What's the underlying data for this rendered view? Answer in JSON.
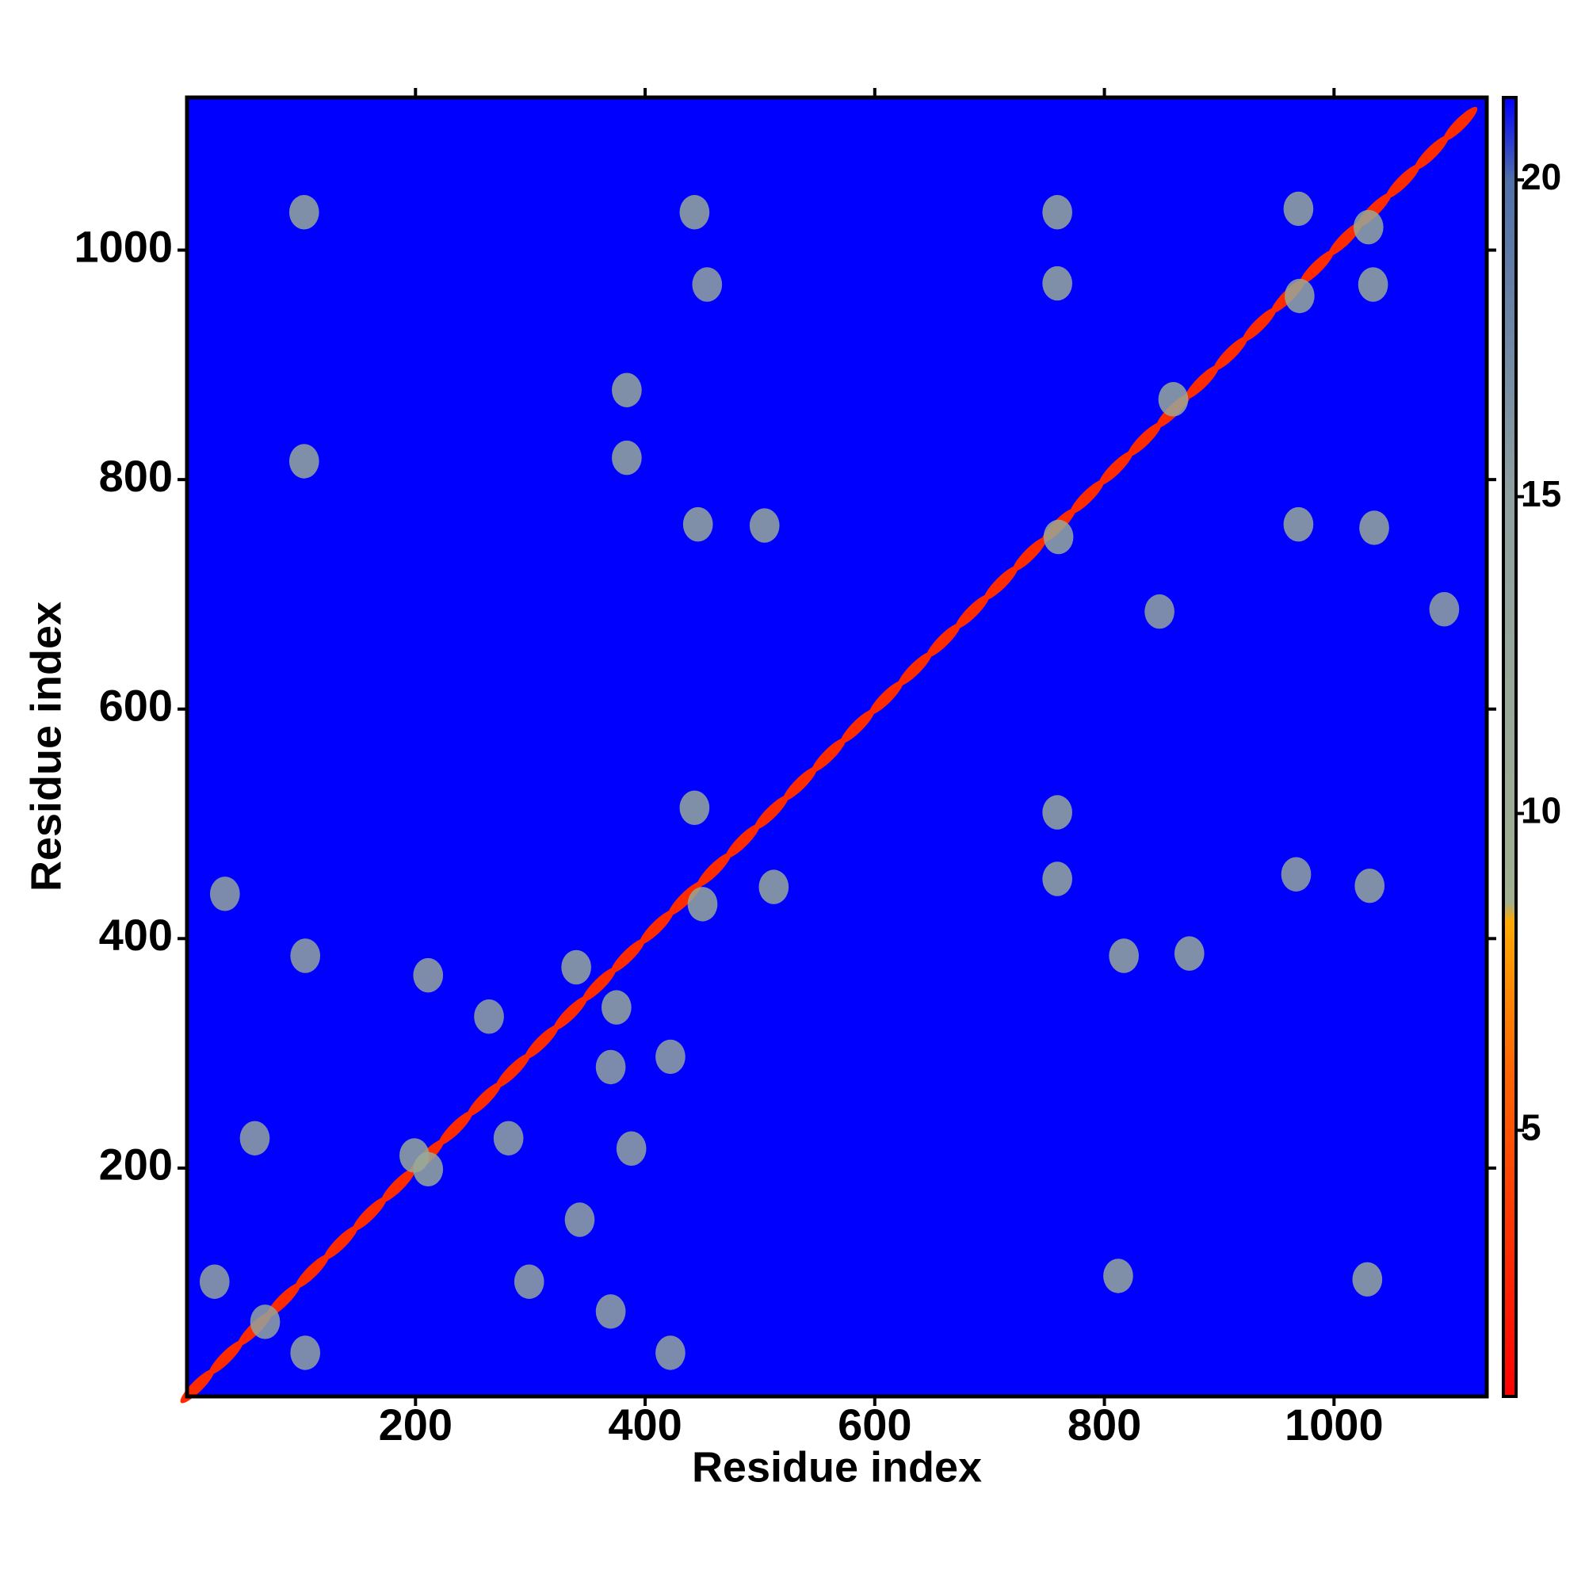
{
  "chart_data": {
    "type": "heatmap",
    "xlabel": "Residue index",
    "ylabel": "Residue index",
    "xlim": [
      1,
      1133
    ],
    "ylim": [
      1,
      1133
    ],
    "xticks": [
      200,
      400,
      600,
      800,
      1000
    ],
    "yticks": [
      200,
      400,
      600,
      800,
      1000
    ],
    "background_color": "#0000ff",
    "colorbar": {
      "lim": [
        0.8,
        21.3
      ],
      "ticks": [
        5,
        10,
        15,
        20
      ],
      "colorscale": [
        [
          0.8,
          "#ff0000"
        ],
        [
          6,
          "#ff6600"
        ],
        [
          8.3,
          "#ffaa00"
        ],
        [
          8.6,
          "#a0b090"
        ],
        [
          15,
          "#8fa0a0"
        ],
        [
          20,
          "#4f6fa8"
        ],
        [
          21.3,
          "#0000ff"
        ]
      ]
    },
    "x": [
      10,
      35,
      60,
      85,
      110,
      135,
      160,
      185,
      210,
      235,
      260,
      285,
      310,
      335,
      360,
      385,
      410,
      435,
      460,
      485,
      510,
      535,
      560,
      585,
      610,
      635,
      660,
      685,
      710,
      735,
      760,
      785,
      810,
      835,
      860,
      885,
      910,
      935,
      960,
      985,
      1010,
      1035,
      1060,
      1085,
      1110,
      103,
      759,
      759,
      969,
      1034,
      969,
      1035,
      446,
      504,
      384,
      103,
      817,
      874,
      812,
      1029,
      443,
      512,
      759,
      759,
      1031,
      384,
      443,
      454,
      848,
      1096,
      967,
      34,
      104,
      211,
      264,
      370,
      422,
      60,
      281,
      388,
      370,
      422,
      25,
      69,
      104,
      299,
      343,
      340,
      375,
      211,
      199,
      450,
      760,
      970,
      860,
      1030
    ],
    "y": [
      10,
      35,
      60,
      85,
      110,
      135,
      160,
      185,
      210,
      235,
      260,
      285,
      310,
      335,
      360,
      385,
      410,
      435,
      460,
      485,
      510,
      535,
      560,
      585,
      610,
      635,
      660,
      685,
      710,
      735,
      760,
      785,
      810,
      835,
      860,
      885,
      910,
      935,
      960,
      985,
      1010,
      1035,
      1060,
      1085,
      1110,
      1033,
      1033,
      971,
      1036,
      970,
      761,
      758,
      761,
      760,
      819,
      816,
      385,
      387,
      106,
      103,
      514,
      445,
      510,
      452,
      446,
      878,
      1033,
      970,
      685,
      687,
      456,
      439,
      385,
      368,
      332,
      288,
      297,
      226,
      226,
      217,
      75,
      39,
      101,
      66,
      39,
      101,
      155,
      375,
      340,
      199,
      211,
      430,
      750,
      960,
      870,
      1020
    ],
    "values": [
      3,
      3,
      3,
      3,
      3,
      3,
      3,
      3,
      3,
      3,
      3,
      3,
      3,
      3,
      3,
      3,
      3,
      3,
      3,
      3,
      3,
      3,
      3,
      3,
      3,
      3,
      3,
      3,
      3,
      3,
      3,
      3,
      3,
      3,
      3,
      3,
      3,
      3,
      3,
      3,
      3,
      3,
      3,
      3,
      3,
      12,
      12,
      12,
      12,
      12,
      12,
      12,
      12,
      12,
      12,
      12,
      12,
      12,
      12,
      12,
      12,
      12,
      12,
      12,
      12,
      12,
      12,
      14,
      14,
      14,
      14,
      14,
      14,
      13,
      14,
      14,
      14,
      14,
      14,
      14,
      14,
      14,
      14,
      14,
      14,
      14,
      14,
      12,
      12,
      12,
      12,
      12,
      12,
      12,
      12,
      12
    ]
  }
}
